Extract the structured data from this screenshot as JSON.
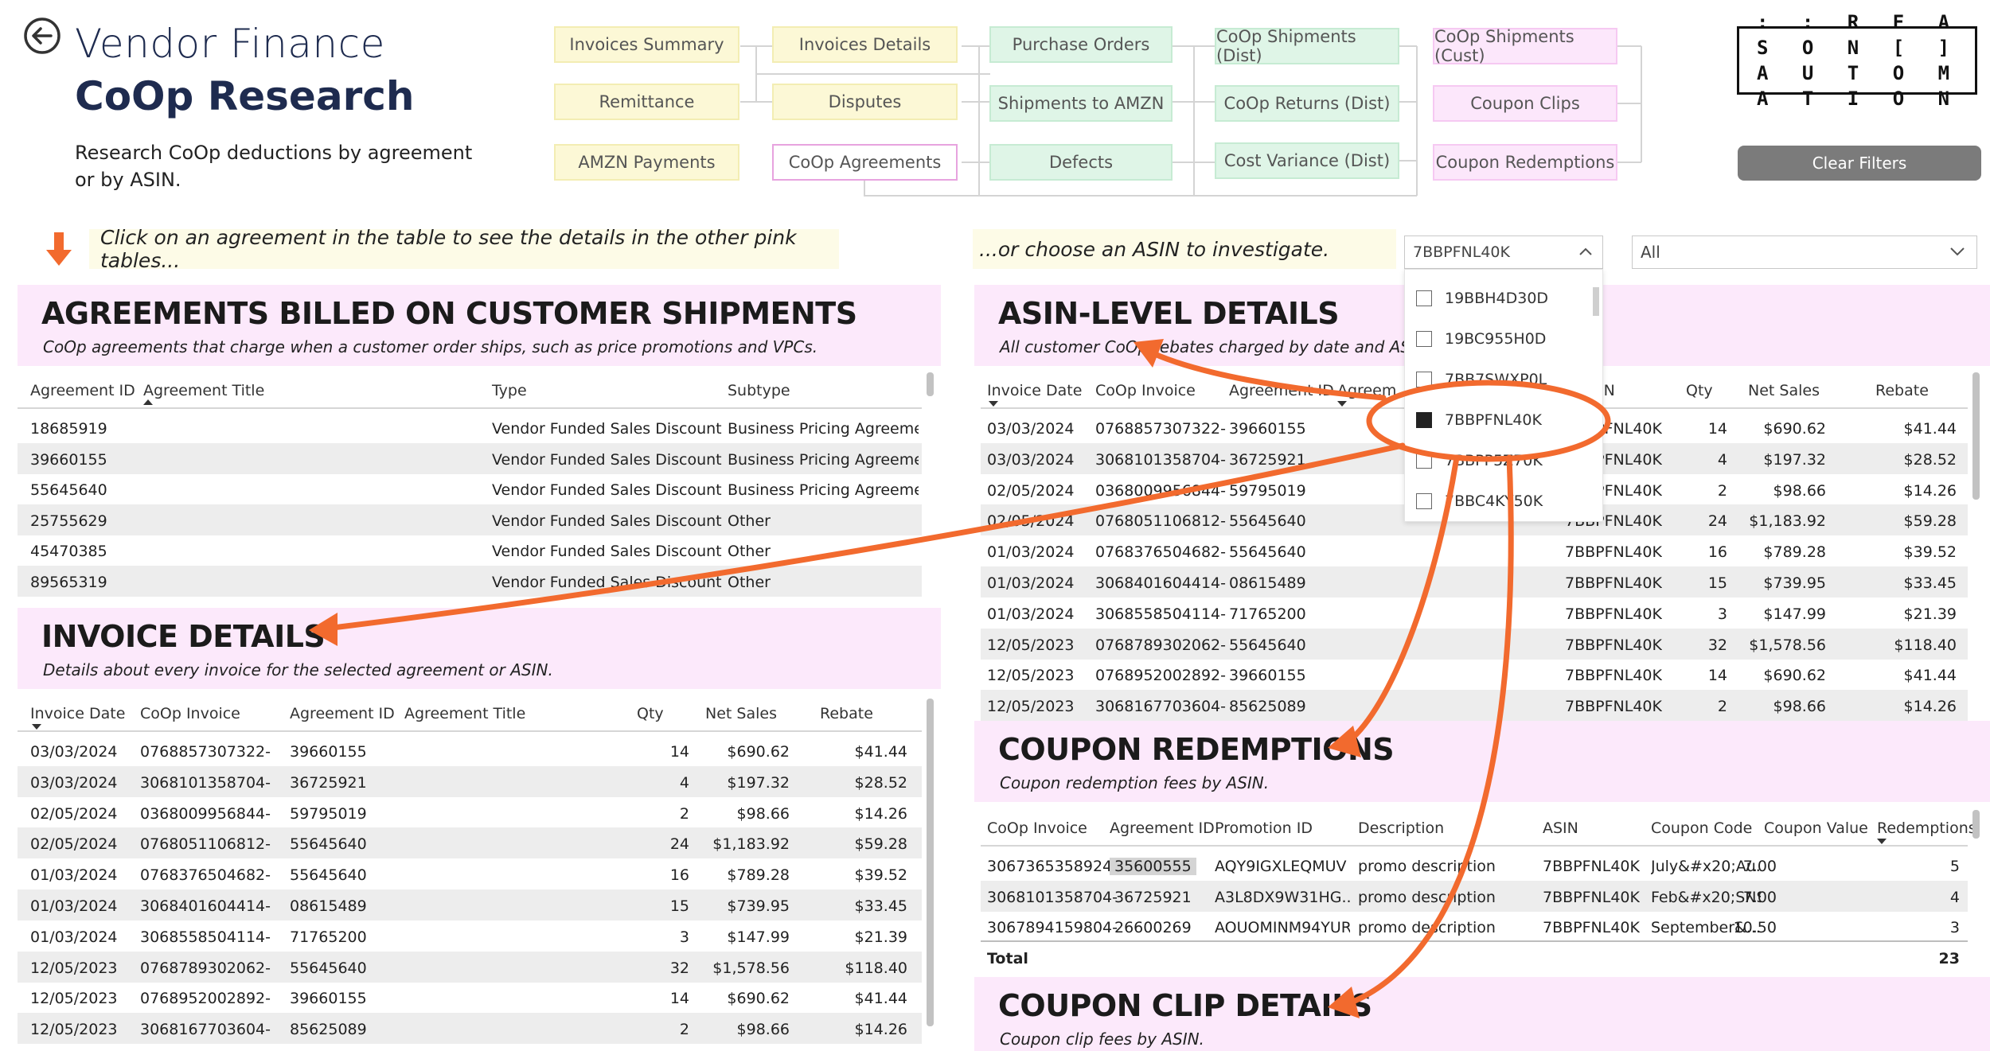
{
  "header": {
    "app_title": "Vendor Finance",
    "page_title": "CoOp Research",
    "description": "Research CoOp deductions by agreement or by ASIN."
  },
  "nav": {
    "invoices_summary": "Invoices Summary",
    "invoices_details": "Invoices Details",
    "purchase_orders": "Purchase Orders",
    "coop_shipments_dist": "CoOp Shipments (Dist)",
    "coop_shipments_cust": "CoOp Shipments (Cust)",
    "remittance": "Remittance",
    "disputes": "Disputes",
    "shipments_to_amzn": "Shipments to AMZN",
    "coop_returns_dist": "CoOp Returns (Dist)",
    "coupon_clips": "Coupon Clips",
    "amzn_payments": "AMZN Payments",
    "coop_agreements": "CoOp Agreements",
    "defects": "Defects",
    "cost_variance_dist": "Cost Variance (Dist)",
    "coupon_redemptions": "Coupon Redemptions"
  },
  "logo": {
    "line1": ": : R E A S O N [ ]",
    "line2": "A U T O M A T I O N"
  },
  "clear_filters": "Clear Filters",
  "instructions": {
    "left": "Click on an agreement in the table to see the details in the other pink tables...",
    "right": "...or choose an ASIN to investigate."
  },
  "slicer": {
    "selected": "7BBPFNL40K",
    "second_value": "All",
    "items": [
      {
        "label": "19BBH4D30D",
        "checked": false
      },
      {
        "label": "19BC955H0D",
        "checked": false
      },
      {
        "label": "7BB7SWXP0L",
        "checked": false
      },
      {
        "label": "7BBPFNL40K",
        "checked": true
      },
      {
        "label": "7BBPP5Z70K",
        "checked": false
      },
      {
        "label": "7BBC4KY50K",
        "checked": false
      }
    ]
  },
  "agreements": {
    "title": "AGREEMENTS BILLED ON CUSTOMER SHIPMENTS",
    "subtitle": "CoOp agreements that charge when a customer order ships, such as price promotions and VPCs.",
    "columns": [
      "Agreement ID",
      "Agreement Title",
      "Type",
      "Subtype"
    ],
    "rows": [
      [
        "18685919",
        "",
        "Vendor Funded Sales Discount",
        "Business Pricing Agreement"
      ],
      [
        "39660155",
        "",
        "Vendor Funded Sales Discount",
        "Business Pricing Agreement"
      ],
      [
        "55645640",
        "",
        "Vendor Funded Sales Discount",
        "Business Pricing Agreement"
      ],
      [
        "25755629",
        "",
        "Vendor Funded Sales Discount",
        "Other"
      ],
      [
        "45470385",
        "",
        "Vendor Funded Sales Discount",
        "Other"
      ],
      [
        "89565319",
        "",
        "Vendor Funded Sales Discount",
        "Other"
      ]
    ]
  },
  "invoice_details": {
    "title": "INVOICE DETAILS",
    "subtitle": "Details about every invoice for the selected agreement or ASIN.",
    "columns": [
      "Invoice Date",
      "CoOp Invoice",
      "Agreement ID",
      "Agreement Title",
      "Qty",
      "Net Sales",
      "Rebate"
    ],
    "rows": [
      [
        "03/03/2024",
        "0768857307322-",
        "39660155",
        "",
        "14",
        "$690.62",
        "$41.44"
      ],
      [
        "03/03/2024",
        "3068101358704-",
        "36725921",
        "",
        "4",
        "$197.32",
        "$28.52"
      ],
      [
        "02/05/2024",
        "0368009956844-",
        "59795019",
        "",
        "2",
        "$98.66",
        "$14.26"
      ],
      [
        "02/05/2024",
        "0768051106812-",
        "55645640",
        "",
        "24",
        "$1,183.92",
        "$59.28"
      ],
      [
        "01/03/2024",
        "0768376504682-",
        "55645640",
        "",
        "16",
        "$789.28",
        "$39.52"
      ],
      [
        "01/03/2024",
        "3068401604414-",
        "08615489",
        "",
        "15",
        "$739.95",
        "$33.45"
      ],
      [
        "01/03/2024",
        "3068558504114-",
        "71765200",
        "",
        "3",
        "$147.99",
        "$21.39"
      ],
      [
        "12/05/2023",
        "0768789302062-",
        "55645640",
        "",
        "32",
        "$1,578.56",
        "$118.40"
      ],
      [
        "12/05/2023",
        "0768952002892-",
        "39660155",
        "",
        "14",
        "$690.62",
        "$41.44"
      ],
      [
        "12/05/2023",
        "3068167703604-",
        "85625089",
        "",
        "2",
        "$98.66",
        "$14.26"
      ]
    ]
  },
  "asin_details": {
    "title": "ASIN-LEVEL DETAILS",
    "subtitle": "All customer CoOp rebates charged by date and ASIN.",
    "columns": [
      "Invoice Date",
      "CoOp Invoice",
      "Agreement ID",
      "Agreement Title",
      "ASIN",
      "Qty",
      "Net Sales",
      "Rebate"
    ],
    "header_agreement_title_visible": "Agreem",
    "rows": [
      [
        "03/03/2024",
        "0768857307322-",
        "39660155",
        "7BBPFNL40K",
        "14",
        "$690.62",
        "$41.44"
      ],
      [
        "03/03/2024",
        "3068101358704-",
        "36725921",
        "7BBPFNL40K",
        "4",
        "$197.32",
        "$28.52"
      ],
      [
        "02/05/2024",
        "0368009956844-",
        "59795019",
        "7BBPFNL40K",
        "2",
        "$98.66",
        "$14.26"
      ],
      [
        "02/05/2024",
        "0768051106812-",
        "55645640",
        "7BBPFNL40K",
        "24",
        "$1,183.92",
        "$59.28"
      ],
      [
        "01/03/2024",
        "0768376504682-",
        "55645640",
        "7BBPFNL40K",
        "16",
        "$789.28",
        "$39.52"
      ],
      [
        "01/03/2024",
        "3068401604414-",
        "08615489",
        "7BBPFNL40K",
        "15",
        "$739.95",
        "$33.45"
      ],
      [
        "01/03/2024",
        "3068558504114-",
        "71765200",
        "7BBPFNL40K",
        "3",
        "$147.99",
        "$21.39"
      ],
      [
        "12/05/2023",
        "0768789302062-",
        "55645640",
        "7BBPFNL40K",
        "32",
        "$1,578.56",
        "$118.40"
      ],
      [
        "12/05/2023",
        "0768952002892-",
        "39660155",
        "7BBPFNL40K",
        "14",
        "$690.62",
        "$41.44"
      ],
      [
        "12/05/2023",
        "3068167703604-",
        "85625089",
        "7BBPFNL40K",
        "2",
        "$98.66",
        "$14.26"
      ]
    ]
  },
  "coupon_redemptions": {
    "title": "COUPON REDEMPTIONS",
    "subtitle": "Coupon redemption fees by ASIN.",
    "columns": [
      "CoOp Invoice",
      "Agreement ID",
      "Promotion ID",
      "Description",
      "ASIN",
      "Coupon Code",
      "Coupon Value",
      "Redemptions"
    ],
    "rows": [
      [
        "3067365358924-",
        "35600555",
        "AQY9IGXLEQMUV",
        "promo description",
        "7BBPFNL40K",
        "July&#x20;Au...",
        "7.00",
        "5"
      ],
      [
        "3068101358704-",
        "36725921",
        "A3L8DX9W31HG...",
        "promo description",
        "7BBPFNL40K",
        "Feb&#x20;SNS",
        "7.00",
        "4"
      ],
      [
        "3067894159804-",
        "26600269",
        "AOUOMINM94YUR",
        "promo description",
        "7BBPFNL40K",
        "September&...",
        "10.50",
        "3"
      ]
    ],
    "total_label": "Total",
    "total_value": "23"
  },
  "coupon_clips": {
    "title": "COUPON CLIP DETAILS",
    "subtitle": "Coupon clip fees by ASIN."
  },
  "colors": {
    "accent_arrow": "#f26a2e",
    "title_navy": "#1e2b4f",
    "pink_panel": "#fce9fb"
  }
}
